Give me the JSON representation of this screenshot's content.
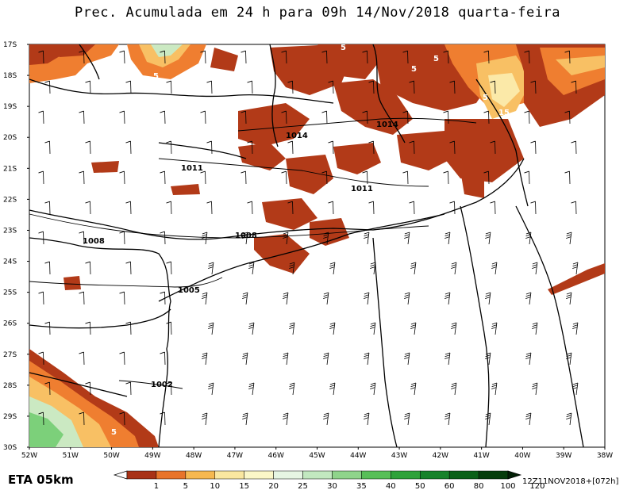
{
  "title": "Prec. Acumulada em 24 h para 09h 14/Nov/2018 quarta-feira",
  "model_label": "ETA 05km",
  "run_stamp": "12Z11NOV2018+[072h]",
  "lat_labels": [
    "17S",
    "18S",
    "19S",
    "20S",
    "21S",
    "22S",
    "23S",
    "24S",
    "25S",
    "26S",
    "27S",
    "28S",
    "29S",
    "30S"
  ],
  "lon_labels": [
    "52W",
    "51W",
    "50W",
    "49W",
    "48W",
    "47W",
    "46W",
    "45W",
    "44W",
    "43W",
    "42W",
    "41W",
    "40W",
    "39W",
    "38W"
  ],
  "pressure_labels": [
    "1014",
    "1014",
    "1011",
    "1011",
    "1008",
    "1008",
    "1005",
    "1002"
  ],
  "precip_labels": [
    "5",
    "5",
    "5",
    "5",
    "15",
    "5",
    "5"
  ],
  "legend": {
    "values": [
      "1",
      "5",
      "10",
      "15",
      "20",
      "25",
      "30",
      "35",
      "40",
      "50",
      "60",
      "80",
      "100",
      "120"
    ],
    "colors": [
      "#ffffff",
      "#a83216",
      "#e8742a",
      "#f6b850",
      "#fae7a0",
      "#fbf7c8",
      "#e6f5e3",
      "#c2e8c0",
      "#8fd48b",
      "#58bf58",
      "#2fa23a",
      "#16822a",
      "#0b6018",
      "#063d0c",
      "#022006"
    ]
  },
  "colors": {
    "heavy_precip": "#b23a18",
    "moderate_precip": "#ef7e30",
    "light_precip": "#f8c064",
    "very_light": "#fbe9a8",
    "green_precip": "#7cd07a"
  }
}
